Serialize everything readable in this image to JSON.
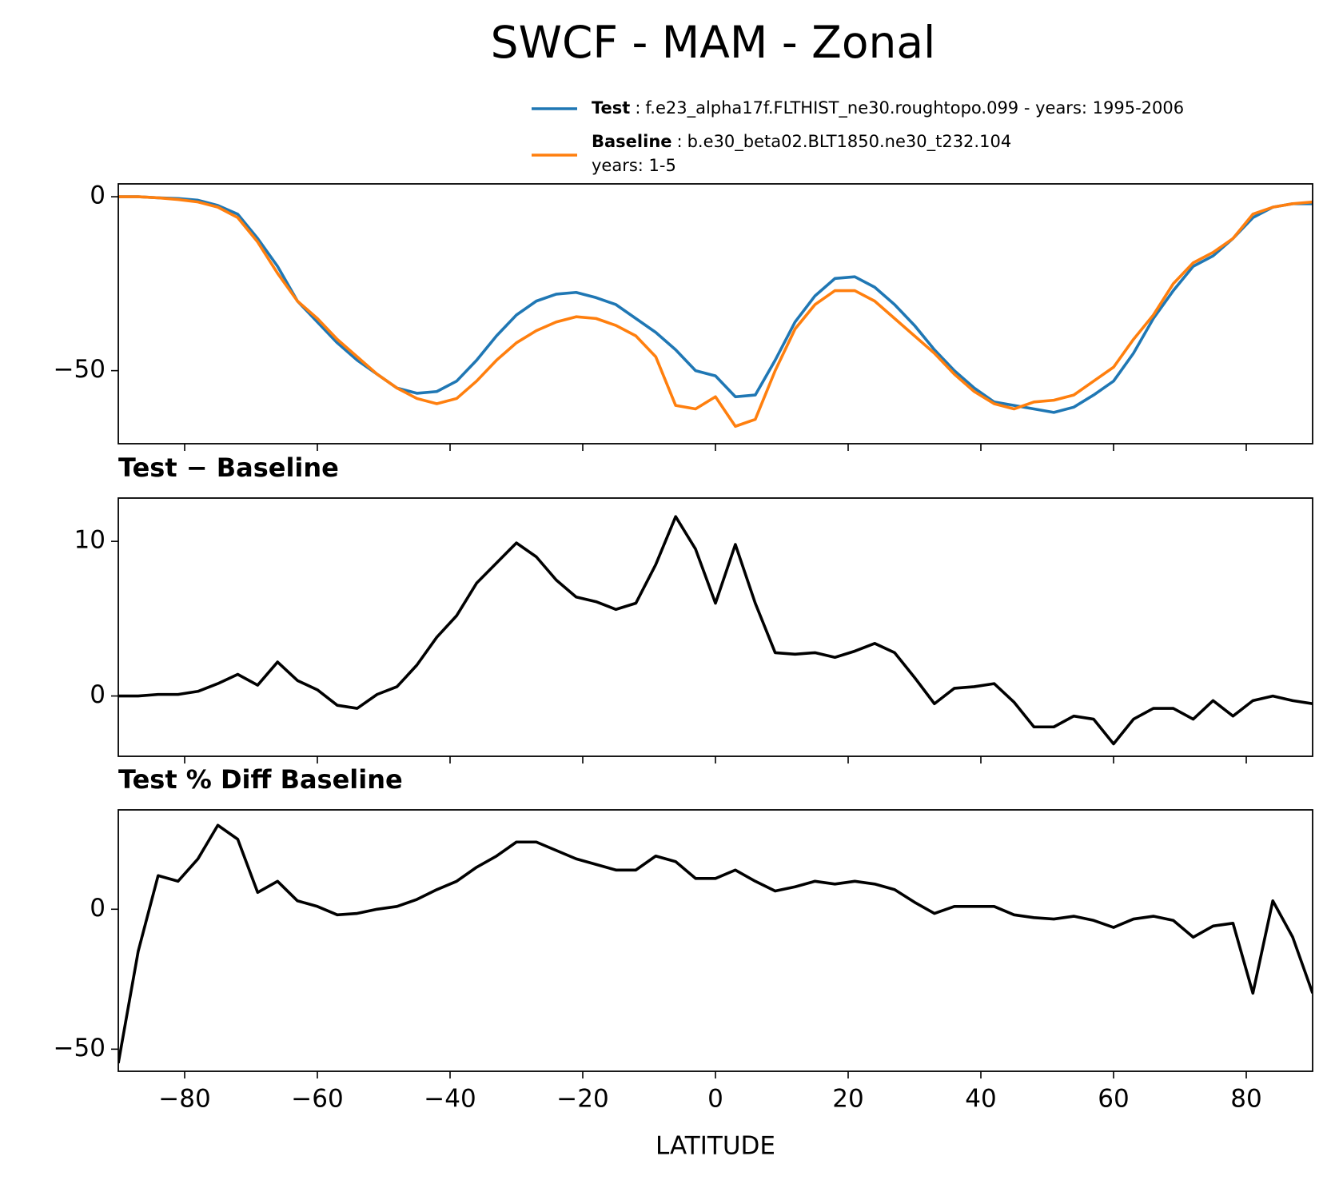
{
  "title": "SWCF - MAM - Zonal",
  "chart_data": [
    {
      "type": "line",
      "x": [
        -90,
        -87,
        -84,
        -81,
        -78,
        -75,
        -72,
        -69,
        -66,
        -63,
        -60,
        -57,
        -54,
        -51,
        -48,
        -45,
        -42,
        -39,
        -36,
        -33,
        -30,
        -27,
        -24,
        -21,
        -18,
        -15,
        -12,
        -9,
        -6,
        -3,
        0,
        3,
        6,
        9,
        12,
        15,
        18,
        21,
        24,
        27,
        30,
        33,
        36,
        39,
        42,
        45,
        48,
        51,
        54,
        57,
        60,
        63,
        66,
        69,
        72,
        75,
        78,
        81,
        84,
        87,
        90
      ],
      "series": [
        {
          "name": "Test",
          "description": [
            "f.e23_alpha17f.FLTHIST_ne30.roughtopo.099 - years: 1995-2006"
          ],
          "color": "#1f77b4",
          "values": [
            0,
            0,
            -0.3,
            -0.5,
            -1,
            -2.5,
            -5,
            -12,
            -20,
            -30,
            -36,
            -42,
            -47,
            -51,
            -55,
            -56.5,
            -56,
            -53,
            -47,
            -40,
            -34,
            -30,
            -28,
            -27.5,
            -29,
            -31,
            -35,
            -39,
            -44,
            -50,
            -51.5,
            -57.5,
            -57,
            -47,
            -36,
            -28.5,
            -23.5,
            -23,
            -26,
            -31,
            -37,
            -44,
            -50,
            -55,
            -59,
            -60,
            -61,
            -62,
            -60.5,
            -57,
            -53,
            -45,
            -35,
            -27,
            -20,
            -17,
            -12,
            -6,
            -3,
            -2,
            -2
          ]
        },
        {
          "name": "Baseline",
          "description": [
            "b.e30_beta02.BLT1850.ne30_t232.104",
            "years: 1-5"
          ],
          "color": "#ff7f0e",
          "values": [
            0,
            0,
            -0.3,
            -0.8,
            -1.5,
            -3,
            -6,
            -13,
            -22,
            -30,
            -35,
            -41,
            -46,
            -51,
            -55,
            -58,
            -59.5,
            -58,
            -53,
            -47,
            -42,
            -38.5,
            -36,
            -34.5,
            -35,
            -37,
            -40,
            -46,
            -60,
            -61,
            -57.5,
            -66,
            -64,
            -50,
            -38,
            -31,
            -27,
            -27,
            -30,
            -35,
            -40,
            -45,
            -51,
            -56,
            -59.5,
            -61,
            -59,
            -58.5,
            -57,
            -53,
            -49,
            -41,
            -34,
            -25,
            -19,
            -16,
            -12,
            -5,
            -3,
            -2,
            -1.5
          ]
        }
      ],
      "xlim": [
        -90,
        90
      ],
      "xticks": [
        {
          "value": -80,
          "label": "−80"
        },
        {
          "value": -60,
          "label": "−60"
        },
        {
          "value": -40,
          "label": "−40"
        },
        {
          "value": -20,
          "label": "−20"
        },
        0,
        20,
        40,
        60,
        80
      ],
      "ylim": [
        -71,
        3.7
      ],
      "yticks": [
        {
          "value": -50,
          "label": "−50"
        },
        0
      ]
    },
    {
      "type": "line",
      "title": "Test − Baseline",
      "x": [
        -90,
        -87,
        -84,
        -81,
        -78,
        -75,
        -72,
        -69,
        -66,
        -63,
        -60,
        -57,
        -54,
        -51,
        -48,
        -45,
        -42,
        -39,
        -36,
        -33,
        -30,
        -27,
        -24,
        -21,
        -18,
        -15,
        -12,
        -9,
        -6,
        -3,
        0,
        3,
        6,
        9,
        12,
        15,
        18,
        21,
        24,
        27,
        30,
        33,
        36,
        39,
        42,
        45,
        48,
        51,
        54,
        57,
        60,
        63,
        66,
        69,
        72,
        75,
        78,
        81,
        84,
        87,
        90
      ],
      "color": "#000000",
      "values": [
        0,
        0,
        0.1,
        0.1,
        0.3,
        0.8,
        1.4,
        0.7,
        2.2,
        1,
        0.4,
        -0.6,
        -0.8,
        0.1,
        0.6,
        2,
        3.8,
        5.2,
        7.3,
        8.6,
        9.9,
        9,
        7.5,
        6.4,
        6.1,
        5.6,
        6,
        8.5,
        11.6,
        9.5,
        6,
        9.8,
        6,
        2.8,
        2.7,
        2.8,
        2.5,
        2.9,
        3.4,
        2.8,
        1.2,
        -0.5,
        0.5,
        0.6,
        0.8,
        -0.4,
        -2,
        -2,
        -1.3,
        -1.5,
        -3.1,
        -1.5,
        -0.8,
        -0.8,
        -1.5,
        -0.3,
        -1.3,
        -0.3,
        0,
        -0.3,
        -0.5
      ],
      "xlim": [
        -90,
        90
      ],
      "xticks": [
        {
          "value": -80,
          "label": "−80"
        },
        {
          "value": -60,
          "label": "−60"
        },
        {
          "value": -40,
          "label": "−40"
        },
        {
          "value": -20,
          "label": "−20"
        },
        0,
        20,
        40,
        60,
        80
      ],
      "ylim": [
        -3.9,
        12.8
      ],
      "yticks": [
        0,
        10
      ]
    },
    {
      "type": "line",
      "title": "Test % Diff Baseline",
      "xlabel": "LATITUDE",
      "x": [
        -90,
        -87,
        -84,
        -81,
        -78,
        -75,
        -72,
        -69,
        -66,
        -63,
        -60,
        -57,
        -54,
        -51,
        -48,
        -45,
        -42,
        -39,
        -36,
        -33,
        -30,
        -27,
        -24,
        -21,
        -18,
        -15,
        -12,
        -9,
        -6,
        -3,
        0,
        3,
        6,
        9,
        12,
        15,
        18,
        21,
        24,
        27,
        30,
        33,
        36,
        39,
        42,
        45,
        48,
        51,
        54,
        57,
        60,
        63,
        66,
        69,
        72,
        75,
        78,
        81,
        84,
        87,
        90
      ],
      "color": "#000000",
      "values": [
        -55,
        -15,
        12,
        10,
        18,
        30,
        25,
        6,
        10,
        3,
        1,
        -2,
        -1.5,
        0,
        1,
        3.5,
        7,
        10,
        15,
        19,
        24,
        24,
        21,
        18,
        16,
        14,
        14,
        19,
        17,
        11,
        11,
        14,
        10,
        6.5,
        8,
        10,
        9,
        10,
        9,
        7,
        2.5,
        -1.5,
        1,
        1,
        1,
        -2,
        -3,
        -3.5,
        -2.5,
        -4,
        -6.5,
        -3.5,
        -2.5,
        -4,
        -10,
        -6,
        -5,
        -30,
        3,
        -10,
        -30
      ],
      "xlim": [
        -90,
        90
      ],
      "xticks": [
        {
          "value": -80,
          "label": "−80"
        },
        {
          "value": -60,
          "label": "−60"
        },
        {
          "value": -40,
          "label": "−40"
        },
        {
          "value": -20,
          "label": "−20"
        },
        0,
        20,
        40,
        60,
        80
      ],
      "ylim": [
        -57.9,
        35.5
      ],
      "yticks": [
        {
          "value": -50,
          "label": "−50"
        },
        0
      ]
    }
  ]
}
